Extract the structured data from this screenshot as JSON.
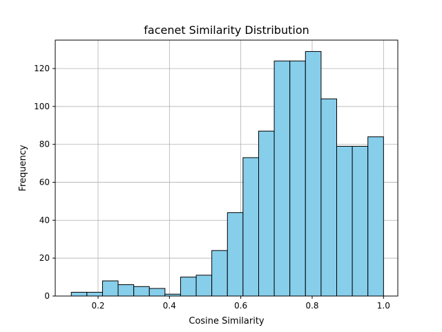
{
  "chart_data": {
    "type": "bar",
    "title": "facenet Similarity Distribution",
    "xlabel": "Cosine Similarity",
    "ylabel": "Frequency",
    "xlim": [
      0.08,
      1.04
    ],
    "ylim": [
      0,
      135
    ],
    "grid": true,
    "legend": "none",
    "bar_color": "#87ceeb",
    "edge_color": "#000000",
    "grid_color": "#b0b0b0",
    "x_ticks": [
      {
        "value": 0.2,
        "label": "0.2"
      },
      {
        "value": 0.4,
        "label": "0.4"
      },
      {
        "value": 0.6,
        "label": "0.6"
      },
      {
        "value": 0.8,
        "label": "0.8"
      },
      {
        "value": 1.0,
        "label": "1.0"
      }
    ],
    "y_ticks": [
      {
        "value": 0,
        "label": "0"
      },
      {
        "value": 20,
        "label": "20"
      },
      {
        "value": 40,
        "label": "40"
      },
      {
        "value": 60,
        "label": "60"
      },
      {
        "value": 80,
        "label": "80"
      },
      {
        "value": 100,
        "label": "100"
      },
      {
        "value": 120,
        "label": "120"
      }
    ],
    "bin_edges": [
      0.125,
      0.1687,
      0.2125,
      0.2562,
      0.3,
      0.3437,
      0.3875,
      0.4312,
      0.475,
      0.5187,
      0.5625,
      0.6062,
      0.65,
      0.6937,
      0.7375,
      0.7812,
      0.825,
      0.8687,
      0.9125,
      0.9562,
      1.0
    ],
    "values": [
      2,
      2,
      8,
      6,
      5,
      4,
      1,
      10,
      11,
      24,
      44,
      73,
      87,
      124,
      124,
      129,
      104,
      79,
      79,
      84
    ]
  }
}
